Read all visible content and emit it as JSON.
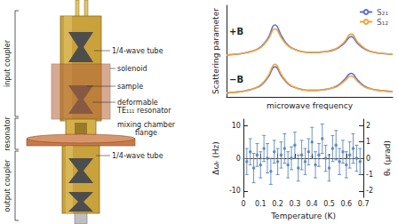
{
  "diagram": {
    "sections": [
      "input coupler",
      "resonator",
      "output coupler"
    ],
    "labels": [
      [
        "1/4-wave tube"
      ],
      [
        "solenoid"
      ],
      [
        "sample"
      ],
      [
        "deformable",
        "TE₁₁₁ resonator"
      ],
      [
        "mixing chamber",
        "flange"
      ],
      [
        "1/4-wave tube"
      ]
    ]
  },
  "chart_data": [
    {
      "type": "line",
      "ylabel": "Scattering parameter",
      "xlabel": "microwave frequency",
      "tick_labels": false,
      "legend": "upper right",
      "annotations": [
        "+B",
        "−B"
      ],
      "xlim": [
        0,
        24
      ],
      "ylim": [
        0,
        1.4
      ],
      "x": [
        0,
        1,
        2,
        3,
        4,
        5,
        6,
        7,
        8,
        9,
        10,
        11,
        12,
        13,
        14,
        15,
        16,
        17,
        18,
        19,
        20,
        21,
        22,
        23,
        24
      ],
      "series": [
        {
          "name": "S₂₁",
          "color": "#5a6fd8",
          "values": [
            0.64,
            0.65,
            0.66,
            0.68,
            0.71,
            0.77,
            0.9,
            1.1,
            0.92,
            0.78,
            0.72,
            0.69,
            0.68,
            0.68,
            0.69,
            0.7,
            0.74,
            0.82,
            0.92,
            0.81,
            0.73,
            0.69,
            0.67,
            0.66,
            0.65
          ]
        },
        {
          "name": "S₁₂",
          "color": "#f0a53a",
          "values": [
            0.64,
            0.65,
            0.66,
            0.68,
            0.71,
            0.76,
            0.88,
            1.04,
            0.89,
            0.77,
            0.72,
            0.69,
            0.68,
            0.68,
            0.69,
            0.71,
            0.75,
            0.84,
            0.96,
            0.83,
            0.74,
            0.69,
            0.67,
            0.66,
            0.65
          ]
        },
        {
          "name": "S₂₁",
          "color": "#5a6fd8",
          "values": [
            0.06,
            0.07,
            0.08,
            0.1,
            0.13,
            0.18,
            0.3,
            0.46,
            0.31,
            0.19,
            0.14,
            0.11,
            0.1,
            0.1,
            0.11,
            0.13,
            0.17,
            0.26,
            0.36,
            0.25,
            0.16,
            0.12,
            0.1,
            0.09,
            0.08
          ]
        },
        {
          "name": "S₁₂",
          "color": "#f0a53a",
          "values": [
            0.06,
            0.07,
            0.08,
            0.1,
            0.13,
            0.19,
            0.32,
            0.5,
            0.33,
            0.2,
            0.14,
            0.11,
            0.1,
            0.1,
            0.11,
            0.13,
            0.16,
            0.24,
            0.32,
            0.23,
            0.15,
            0.12,
            0.1,
            0.09,
            0.08
          ]
        }
      ]
    },
    {
      "type": "scatter",
      "xlabel": "Temperature (K)",
      "ylabel": "Δωᵣ (Hz)",
      "y2label": "θₖ (μrad)",
      "color": "#4a7ab5",
      "grid": false,
      "reference_line": 0,
      "xlim": [
        0,
        0.7
      ],
      "xticks": [
        0,
        0.1,
        0.2,
        0.3,
        0.4,
        0.5,
        0.6,
        0.7
      ],
      "ylim": [
        -12,
        12
      ],
      "yticks": [
        -10,
        0,
        10
      ],
      "y2lim": [
        -2.4,
        2.4
      ],
      "y2ticks": [
        -2,
        -1,
        0,
        1,
        2
      ],
      "x": [
        0.02,
        0.04,
        0.06,
        0.08,
        0.1,
        0.12,
        0.14,
        0.16,
        0.18,
        0.2,
        0.22,
        0.24,
        0.26,
        0.28,
        0.3,
        0.32,
        0.34,
        0.36,
        0.38,
        0.4,
        0.42,
        0.44,
        0.46,
        0.48,
        0.5,
        0.52,
        0.54,
        0.56,
        0.58,
        0.6,
        0.62,
        0.64,
        0.66,
        0.68
      ],
      "values": [
        -1,
        2,
        -3,
        1,
        -2,
        3,
        0,
        -4,
        2,
        -1,
        1,
        3,
        -2,
        0,
        4,
        -3,
        1,
        -1,
        2,
        5,
        -2,
        1,
        6,
        0,
        -3,
        3,
        4,
        -1,
        2,
        -2,
        1,
        3,
        0,
        -1
      ],
      "errors": [
        4,
        4,
        4.5,
        3.5,
        4,
        4,
        4.5,
        4,
        3.5,
        4,
        4,
        4.5,
        4,
        3.5,
        4,
        4,
        4.5,
        4,
        4,
        4.5,
        4,
        3.5,
        4.5,
        4,
        4,
        4,
        4.5,
        4,
        3.5,
        4,
        4,
        4.5,
        4,
        4
      ]
    }
  ]
}
